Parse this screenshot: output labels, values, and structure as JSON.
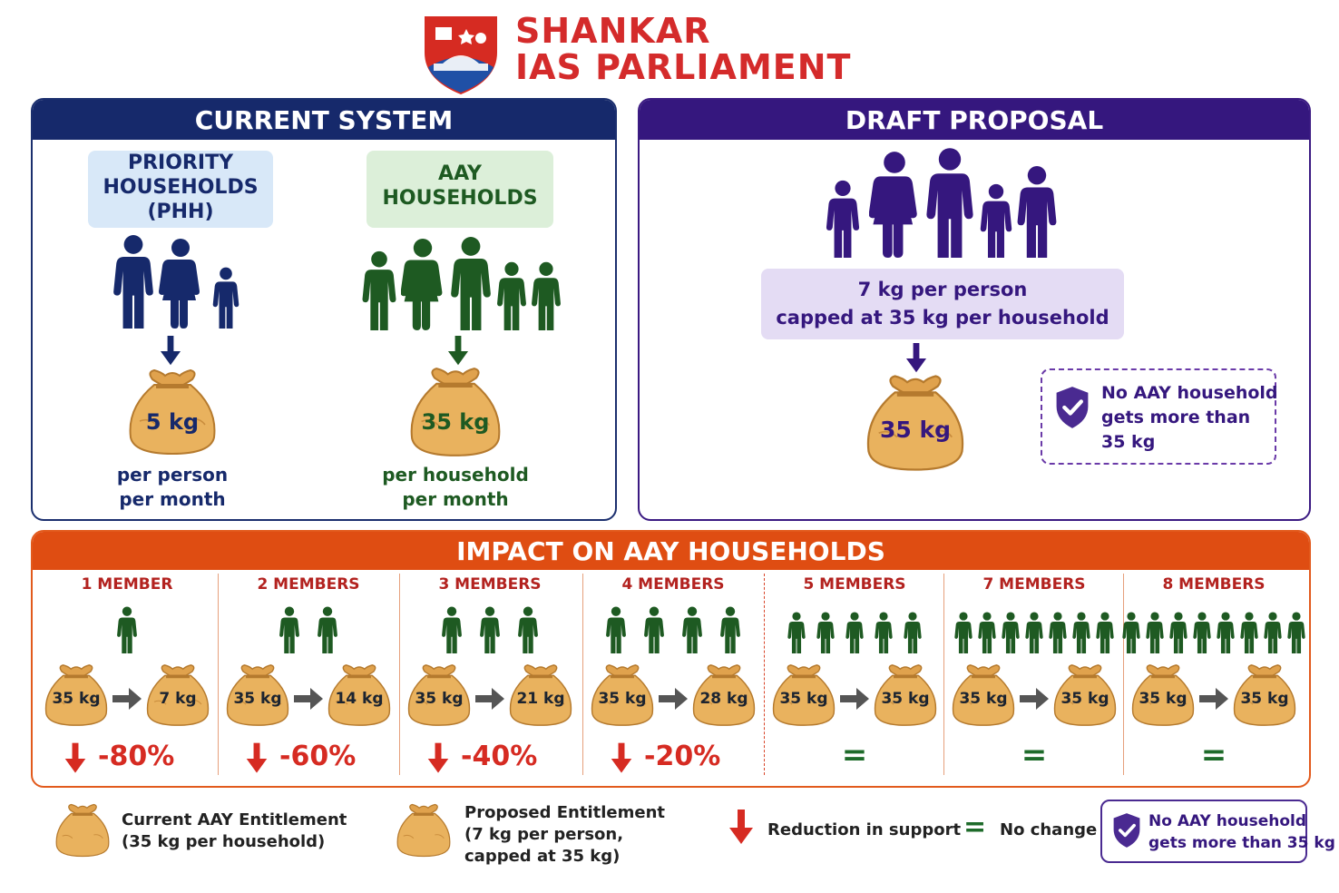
{
  "brand": {
    "line1": "SHANKAR",
    "line2": "IAS PARLIAMENT"
  },
  "colors": {
    "navy": "#16296b",
    "green": "#1e5a22",
    "purple": "#35177e",
    "orange": "#df4d12",
    "red": "#d62b22",
    "sack": "#e9b25e"
  },
  "current": {
    "title": "CURRENT SYSTEM",
    "phh": {
      "label1": "PRIORITY",
      "label2": "HOUSEHOLDS",
      "label3": "(PHH)",
      "amount": "5 kg",
      "unit1": "per person",
      "unit2": "per month"
    },
    "aay": {
      "label1": "AAY",
      "label2": "HOUSEHOLDS",
      "amount": "35 kg",
      "unit1": "per household",
      "unit2": "per month"
    }
  },
  "draft": {
    "title": "DRAFT PROPOSAL",
    "rule1": "7 kg per person",
    "rule2": "capped at 35 kg per household",
    "amount": "35 kg",
    "note1": "No AAY household",
    "note2": "gets more than",
    "note3": "35 kg"
  },
  "impact": {
    "title": "IMPACT ON AAY HOUSEHOLDS",
    "columns": [
      {
        "label": "1 MEMBER",
        "members": 1,
        "from": "35 kg",
        "to": "7 kg",
        "change": "-80%"
      },
      {
        "label": "2 MEMBERS",
        "members": 2,
        "from": "35 kg",
        "to": "14 kg",
        "change": "-60%"
      },
      {
        "label": "3 MEMBERS",
        "members": 3,
        "from": "35 kg",
        "to": "21 kg",
        "change": "-40%"
      },
      {
        "label": "4 MEMBERS",
        "members": 4,
        "from": "35 kg",
        "to": "28 kg",
        "change": "-20%"
      },
      {
        "label": "5 MEMBERS",
        "members": 5,
        "from": "35 kg",
        "to": "35 kg",
        "change": "="
      },
      {
        "label": "7 MEMBERS",
        "members": 7,
        "from": "35 kg",
        "to": "35 kg",
        "change": "="
      },
      {
        "label": "8 MEMBERS",
        "members": 8,
        "from": "35 kg",
        "to": "35 kg",
        "change": "="
      }
    ]
  },
  "legend": {
    "current1": "Current AAY Entitlement",
    "current2": "(35 kg per household)",
    "proposed1": "Proposed Entitlement",
    "proposed2": "(7 kg per person,",
    "proposed3": "capped at 35 kg)",
    "reduction": "Reduction in support",
    "nochange": "No change",
    "note1": "No AAY household",
    "note2": "gets more than 35 kg"
  }
}
